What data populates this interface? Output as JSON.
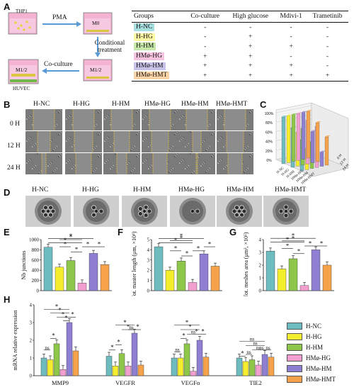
{
  "panel_letters": {
    "a": "A",
    "b": "B",
    "c": "C",
    "d": "D",
    "e": "E",
    "f": "F",
    "g": "G",
    "h": "H"
  },
  "schematic": {
    "thp1": "THP1",
    "pma": "PMA",
    "m0": "M0",
    "conditional_treatment": "Conditional treatment",
    "m12_a": "M1/2",
    "m12_b": "M1/2",
    "coculture": "Co-culture",
    "huvec": "HUVEC"
  },
  "groups_table": {
    "headers": [
      "Groups",
      "Co-culture",
      "High glucose",
      "Mdivi-1",
      "Trametinib"
    ],
    "rows": [
      {
        "name": "H-NC",
        "color": "#a7dfe0",
        "cells": [
          "-",
          "-",
          "-",
          "-"
        ]
      },
      {
        "name": "H-HG",
        "color": "#fbf6a1",
        "cells": [
          "-",
          "+",
          "-",
          "-"
        ]
      },
      {
        "name": "H-HM",
        "color": "#c6e8a8",
        "cells": [
          "-",
          "+",
          "+",
          "-"
        ]
      },
      {
        "name": "HMø-HG",
        "color": "#f6c4e0",
        "cells": [
          "+",
          "+",
          "-",
          "-"
        ]
      },
      {
        "name": "HMø-HM",
        "color": "#c9c3ea",
        "cells": [
          "+",
          "+",
          "+",
          "-"
        ]
      },
      {
        "name": "HMø-HMT",
        "color": "#fbd3a6",
        "cells": [
          "+",
          "+",
          "+",
          "+"
        ]
      }
    ]
  },
  "panel_b": {
    "columns": [
      "H-NC",
      "H-HG",
      "H-HM",
      "HMø-HG",
      "HMø-HM",
      "HMø-HMT"
    ],
    "rows": [
      "0 H",
      "12 H",
      "24 H"
    ],
    "scale_bar": "200 μm"
  },
  "panel_c": {
    "ticks": [
      "100%",
      "80%",
      "60%",
      "40%",
      "20%",
      "0%"
    ],
    "groups": [
      "H-NC",
      "H-HG",
      "H-HM",
      "HMø-HG",
      "HMø-HM",
      "HMø-HMT"
    ],
    "times": [
      "0 H",
      "12 H",
      "24 H"
    ]
  },
  "panel_d": {
    "columns": [
      "H-NC",
      "H-HG",
      "H-HM",
      "HMø-HG",
      "HMø-HM",
      "HMø-HMT"
    ],
    "scale_bar": "500 μm"
  },
  "sig": {
    "star": "*",
    "ns": "ns"
  },
  "colors": {
    "H-NC": "#6cbcc0",
    "H-HG": "#f5ee2d",
    "H-HM": "#8ec64a",
    "HMø-HG": "#f29fd0",
    "HMø-HM": "#8e7fd2",
    "HMø-HMT": "#f6a24a"
  },
  "chart_data": [
    {
      "type": "bar",
      "panel": "E",
      "categories": [
        "H-NC",
        "H-HG",
        "H-HM",
        "HMø-HG",
        "HMø-HM",
        "HMø-HMT"
      ],
      "values": [
        850,
        460,
        590,
        150,
        730,
        510
      ],
      "ylabel": "Nb junctions",
      "ylim": [
        0,
        1000
      ],
      "yticks": [
        "0",
        "200",
        "400",
        "600",
        "800",
        "1000"
      ]
    },
    {
      "type": "bar",
      "panel": "F",
      "categories": [
        "H-NC",
        "H-HG",
        "H-HM",
        "HMø-HG",
        "HMø-HM",
        "HMø-HMT"
      ],
      "values": [
        4.3,
        2.0,
        2.9,
        0.8,
        3.6,
        2.4
      ],
      "ylabel": "Tot. master length (μm, ×10⁴)",
      "ylim": [
        0,
        5
      ],
      "yticks": [
        "0",
        "1",
        "2",
        "3",
        "4",
        "5"
      ]
    },
    {
      "type": "bar",
      "panel": "G",
      "categories": [
        "H-NC",
        "H-HG",
        "H-HM",
        "HMø-HG",
        "HMø-HM",
        "HMø-HMT"
      ],
      "values": [
        3.1,
        1.7,
        2.5,
        0.4,
        3.2,
        2.0
      ],
      "ylabel": "Tot. meshes area (μm², ×10⁵)",
      "ylim": [
        0,
        4
      ],
      "yticks": [
        "0",
        "1",
        "2",
        "3",
        "4"
      ]
    },
    {
      "type": "bar",
      "panel": "H",
      "categories": [
        "MMP9",
        "VEGFR",
        "VEGFα",
        "TIE2"
      ],
      "series": [
        {
          "name": "H-NC",
          "values": [
            1.0,
            1.1,
            1.0,
            1.0
          ]
        },
        {
          "name": "H-HG",
          "values": [
            0.9,
            0.55,
            1.0,
            0.8
          ]
        },
        {
          "name": "H-HM",
          "values": [
            1.8,
            1.25,
            1.8,
            0.9
          ]
        },
        {
          "name": "HMø-HG",
          "values": [
            0.35,
            0.55,
            0.25,
            0.6
          ]
        },
        {
          "name": "HMø-HM",
          "values": [
            3.0,
            2.4,
            2.0,
            1.2
          ]
        },
        {
          "name": "HMø-HMT",
          "values": [
            1.4,
            0.6,
            1.05,
            1.05
          ]
        }
      ],
      "ylabel": "mRNA relative expression",
      "ylim": [
        0,
        4
      ],
      "yticks": [
        "0",
        "1",
        "2",
        "3",
        "4"
      ]
    }
  ]
}
